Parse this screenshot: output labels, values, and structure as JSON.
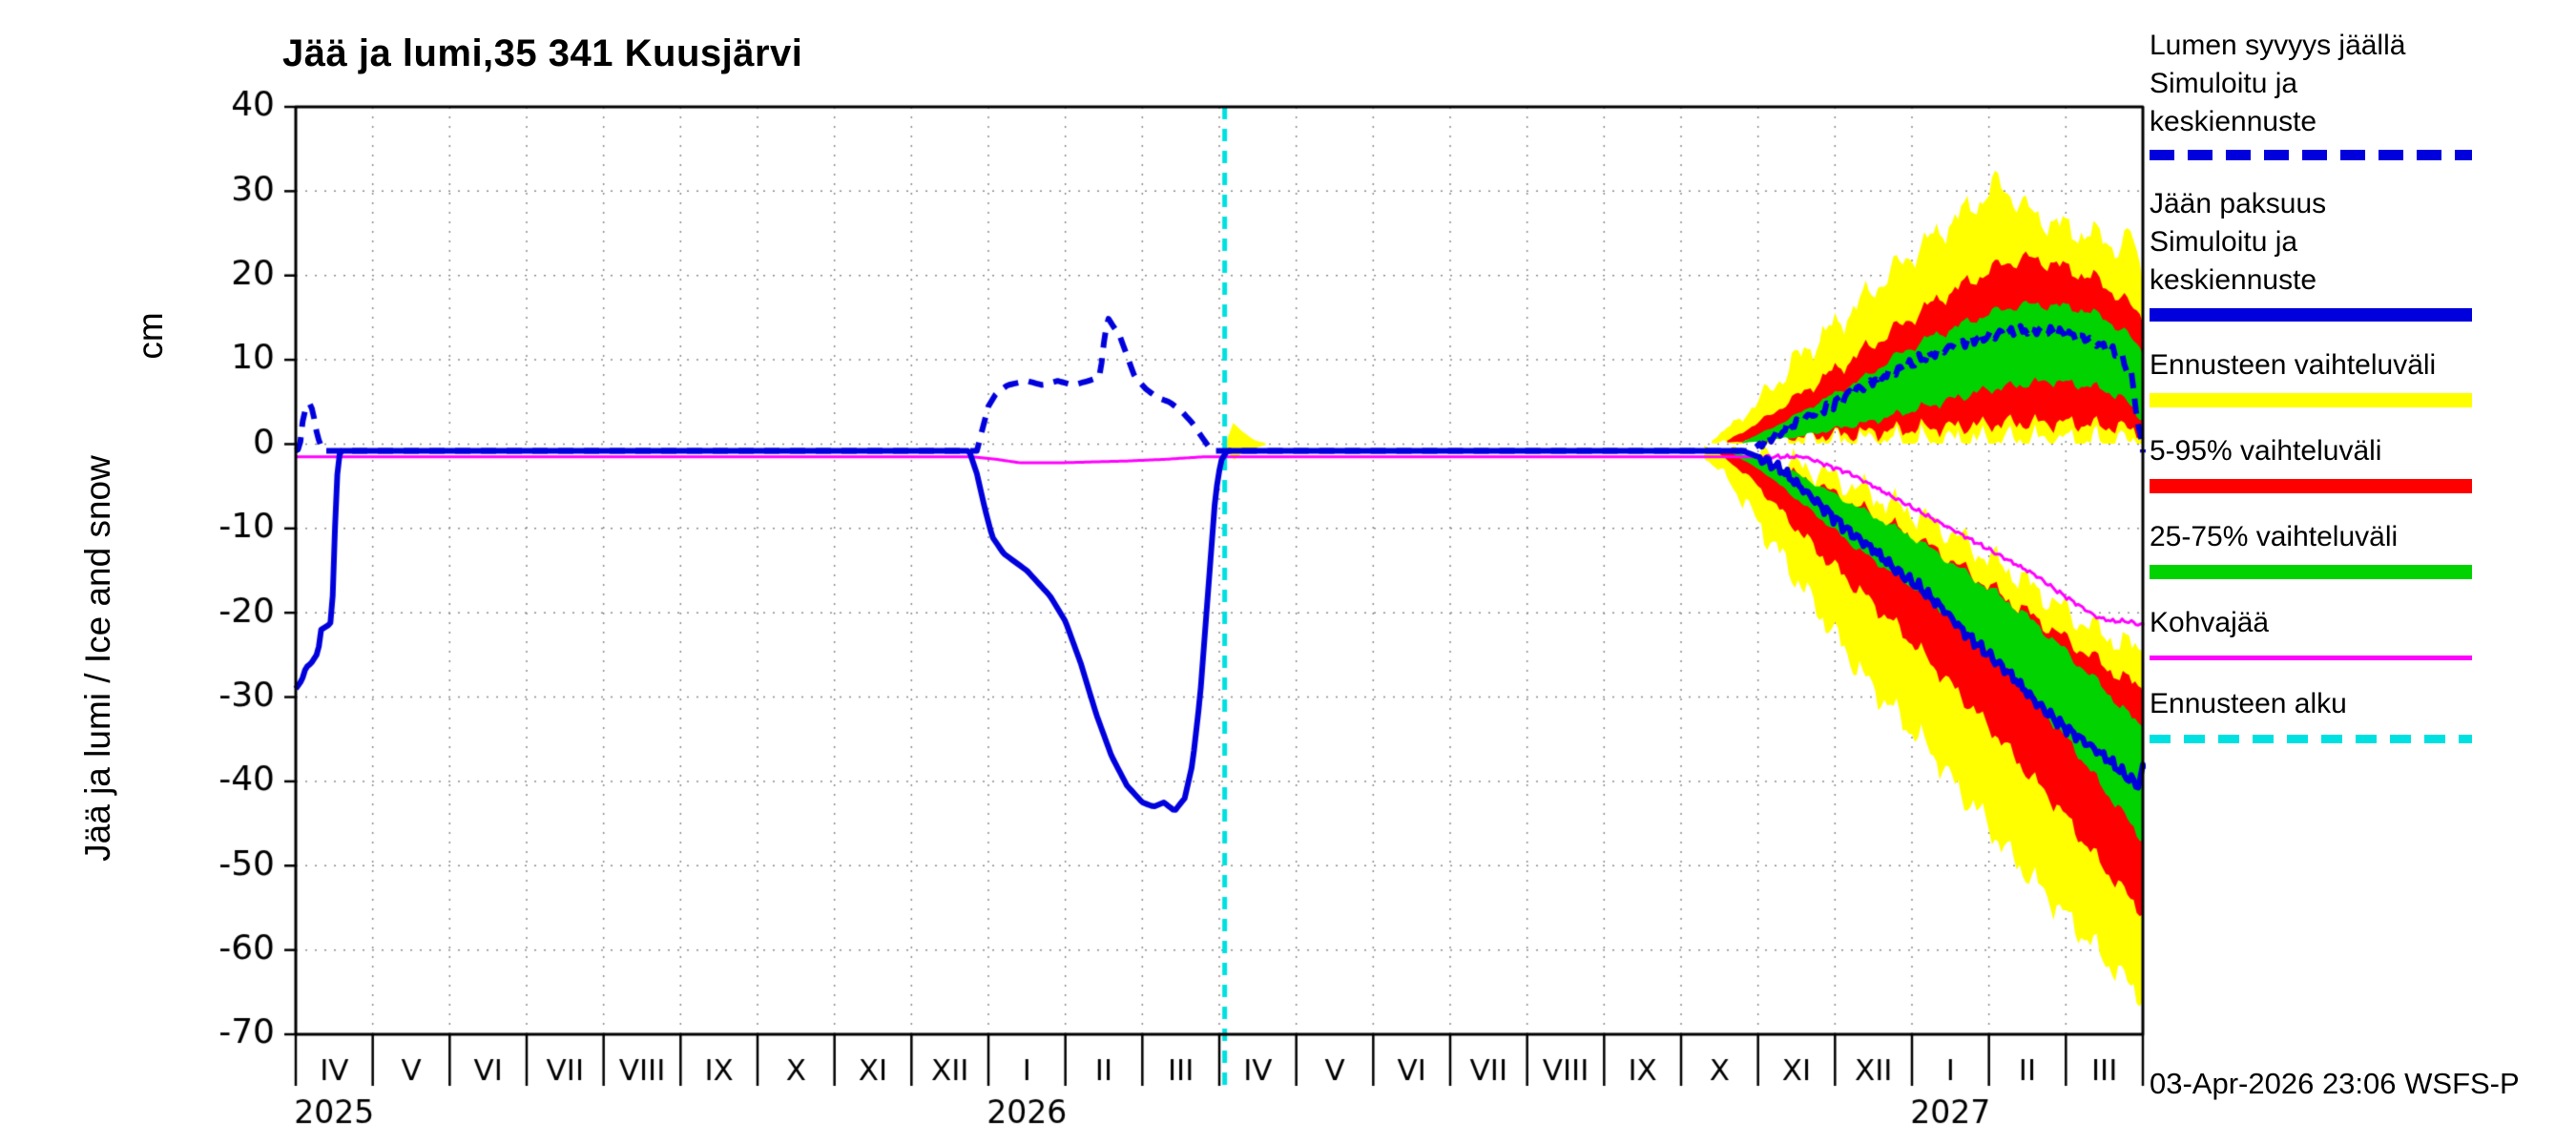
{
  "title": "Jää ja lumi,35 341 Kuusjärvi",
  "y_axis": {
    "label": "Jää ja lumi / Ice and snow",
    "unit": "cm"
  },
  "timestamp": "03-Apr-2026 23:06 WSFS-P",
  "colors": {
    "blue": "#0000dd",
    "yellow": "#ffff00",
    "red": "#ff0000",
    "green": "#00d300",
    "magenta": "#ff00ff",
    "cyan": "#00e0e0",
    "grid": "#8a8a8a"
  },
  "legend": [
    {
      "line1": "Lumen syvyys jäällä",
      "line2": "Simuloitu ja keskiennuste",
      "symbol": "blue-dashed-line"
    },
    {
      "line1": "Jään paksuus",
      "line2": "Simuloitu ja keskiennuste",
      "symbol": "blue-solid-line"
    },
    {
      "line1": "Ennusteen vaihteluväli",
      "symbol": "yellow-band"
    },
    {
      "line1": "5-95% vaihteluväli",
      "symbol": "red-band"
    },
    {
      "line1": "25-75% vaihteluväli",
      "symbol": "green-band"
    },
    {
      "line1": "Kohvajää",
      "symbol": "magenta-line"
    },
    {
      "line1": "Ennusteen alku",
      "symbol": "cyan-dashed-line"
    }
  ],
  "chart_data": {
    "type": "line",
    "title": "Jää ja lumi,35 341 Kuusjärvi",
    "xlabel": "",
    "ylabel": "Jää ja lumi / Ice and snow (cm)",
    "xlim": [
      0,
      24
    ],
    "ylim": [
      -70,
      40
    ],
    "yticks": [
      40,
      30,
      20,
      10,
      0,
      -10,
      -20,
      -30,
      -40,
      -50,
      -60,
      -70
    ],
    "grid": true,
    "legend_position": "right",
    "x_unit": "months, IV/2025 - III/2027",
    "x_axis_months": [
      "IV",
      "V",
      "VI",
      "VII",
      "VIII",
      "IX",
      "X",
      "XI",
      "XII",
      "I",
      "II",
      "III",
      "IV",
      "V",
      "VI",
      "VII",
      "VIII",
      "IX",
      "X",
      "XI",
      "XII",
      "I",
      "II",
      "III"
    ],
    "year_labels": [
      {
        "text": "2025",
        "x": 0.5
      },
      {
        "text": "2026",
        "x": 9.5
      },
      {
        "text": "2027",
        "x": 21.5
      }
    ],
    "forecast_start_x": 12.07,
    "series": [
      {
        "name": "kohvajaa",
        "label": "Kohvajää",
        "color": "#ff00ff",
        "style": "solid",
        "width": 3,
        "wiggle": 0.3,
        "points": [
          [
            0,
            -1.5
          ],
          [
            8.8,
            -1.5
          ],
          [
            9.1,
            -1.8
          ],
          [
            9.4,
            -2.2
          ],
          [
            10.0,
            -2.2
          ],
          [
            10.8,
            -2
          ],
          [
            11.3,
            -1.8
          ],
          [
            11.8,
            -1.5
          ],
          [
            19.6,
            -1.5
          ],
          [
            19.9,
            -2.5
          ],
          [
            20.2,
            -3.5
          ],
          [
            20.5,
            -5
          ],
          [
            20.8,
            -6.5
          ],
          [
            21.1,
            -8
          ],
          [
            21.4,
            -9.5
          ],
          [
            21.7,
            -11
          ],
          [
            22.0,
            -12.5
          ],
          [
            22.3,
            -14
          ],
          [
            22.6,
            -15.5
          ],
          [
            22.9,
            -17.5
          ],
          [
            23.15,
            -19
          ],
          [
            23.4,
            -20.5
          ],
          [
            23.6,
            -21
          ],
          [
            23.8,
            -21
          ],
          [
            24,
            -21.5
          ]
        ]
      },
      {
        "name": "ice-thickness-simulated-median",
        "label": "Jään paksuus - Simuloitu ja keskiennuste",
        "color": "#0000dd",
        "style": "solid",
        "width": 6,
        "wiggle": 0.8,
        "points": [
          [
            0,
            -29
          ],
          [
            0.08,
            -28
          ],
          [
            0.13,
            -26.5
          ],
          [
            0.2,
            -26
          ],
          [
            0.27,
            -25
          ],
          [
            0.3,
            -24
          ],
          [
            0.33,
            -22
          ],
          [
            0.42,
            -21.5
          ],
          [
            0.47,
            -21
          ],
          [
            0.5,
            -12
          ],
          [
            0.55,
            -1.5
          ],
          [
            0.6,
            -0.8
          ],
          [
            8.75,
            -0.8
          ],
          [
            8.85,
            -3.5
          ],
          [
            8.95,
            -7.5
          ],
          [
            9.05,
            -11
          ],
          [
            9.2,
            -13
          ],
          [
            9.5,
            -15
          ],
          [
            9.8,
            -18
          ],
          [
            10.0,
            -21
          ],
          [
            10.2,
            -26
          ],
          [
            10.4,
            -32
          ],
          [
            10.6,
            -37
          ],
          [
            10.8,
            -40.5
          ],
          [
            11.0,
            -42.5
          ],
          [
            11.15,
            -43
          ],
          [
            11.28,
            -42.5
          ],
          [
            11.42,
            -43.5
          ],
          [
            11.55,
            -42
          ],
          [
            11.65,
            -38
          ],
          [
            11.75,
            -30
          ],
          [
            11.85,
            -18
          ],
          [
            11.95,
            -6
          ],
          [
            12.02,
            -2
          ],
          [
            12.1,
            -0.8
          ],
          [
            18.8,
            -0.8
          ],
          [
            19.0,
            -1.5
          ],
          [
            19.3,
            -3
          ],
          [
            19.6,
            -5.5
          ],
          [
            19.9,
            -8
          ],
          [
            20.2,
            -10.5
          ],
          [
            20.5,
            -12.5
          ],
          [
            20.8,
            -15
          ],
          [
            21.1,
            -17
          ],
          [
            21.4,
            -19.5
          ],
          [
            21.7,
            -22.5
          ],
          [
            22.0,
            -25
          ],
          [
            22.3,
            -27.5
          ],
          [
            22.6,
            -30.5
          ],
          [
            22.9,
            -33
          ],
          [
            23.2,
            -35
          ],
          [
            23.5,
            -37
          ],
          [
            23.8,
            -39.5
          ],
          [
            23.95,
            -40.5
          ],
          [
            24,
            -38.5
          ]
        ]
      },
      {
        "name": "snow-depth-simulated-median",
        "label": "Lumen syvyys jäällä - Simuloitu ja keskiennuste",
        "color": "#0000dd",
        "style": "dashed",
        "width": 6,
        "wiggle": 0.8,
        "points": [
          [
            0,
            -0.8
          ],
          [
            0.05,
            -0.5
          ],
          [
            0.1,
            3.5
          ],
          [
            0.17,
            5
          ],
          [
            0.22,
            4
          ],
          [
            0.28,
            1
          ],
          [
            0.35,
            -0.8
          ],
          [
            8.85,
            -0.8
          ],
          [
            8.9,
            1
          ],
          [
            9.0,
            4.5
          ],
          [
            9.1,
            6
          ],
          [
            9.25,
            7
          ],
          [
            9.5,
            7.5
          ],
          [
            9.7,
            7
          ],
          [
            9.9,
            7.5
          ],
          [
            10.1,
            7
          ],
          [
            10.3,
            7.5
          ],
          [
            10.45,
            8
          ],
          [
            10.5,
            12
          ],
          [
            10.55,
            15
          ],
          [
            10.62,
            14
          ],
          [
            10.7,
            13
          ],
          [
            10.78,
            11
          ],
          [
            10.9,
            8
          ],
          [
            11.05,
            6.5
          ],
          [
            11.2,
            5.5
          ],
          [
            11.35,
            5
          ],
          [
            11.5,
            4
          ],
          [
            11.65,
            2.5
          ],
          [
            11.8,
            0.5
          ],
          [
            11.9,
            -0.8
          ],
          [
            18.9,
            -0.8
          ],
          [
            19.1,
            0.5
          ],
          [
            19.4,
            2
          ],
          [
            19.7,
            3.5
          ],
          [
            20.0,
            5
          ],
          [
            20.3,
            6.5
          ],
          [
            20.6,
            8
          ],
          [
            20.9,
            9
          ],
          [
            21.2,
            10.5
          ],
          [
            21.5,
            11.5
          ],
          [
            21.8,
            12.5
          ],
          [
            22.1,
            13
          ],
          [
            22.4,
            13.5
          ],
          [
            22.7,
            13.5
          ],
          [
            23.0,
            13
          ],
          [
            23.3,
            12.5
          ],
          [
            23.5,
            11.5
          ],
          [
            23.7,
            10.5
          ],
          [
            23.85,
            8
          ],
          [
            23.95,
            2
          ],
          [
            24,
            -1
          ]
        ]
      }
    ],
    "bands": [
      {
        "name": "forecast-start-spread",
        "color": "#ffff00",
        "jitter": 0,
        "x": [
          12.1,
          12.18,
          12.3,
          12.45,
          12.6
        ],
        "upper": [
          0.5,
          2.5,
          1.5,
          0.5,
          0.1
        ],
        "lower": [
          -0.5,
          -2,
          -1,
          -0.5,
          -0.1
        ]
      },
      {
        "name": "snow-forecast-range",
        "color": "#ffff00",
        "jitter": 2.2,
        "cmin": 0.05,
        "x": [
          18.4,
          18.7,
          19.0,
          19.3,
          19.6,
          20.0,
          20.4,
          20.8,
          21.2,
          21.6,
          21.9,
          22.1,
          22.3,
          22.6,
          22.9,
          23.2,
          23.5,
          23.7,
          23.85,
          24
        ],
        "upper": [
          0.5,
          2.5,
          5,
          8,
          11,
          14,
          17.5,
          21,
          24,
          27,
          29,
          31,
          29.5,
          27,
          26,
          25,
          24.5,
          23,
          25,
          20
        ],
        "lower": [
          0.1,
          0.2,
          0.2,
          0.3,
          0.3,
          0.3,
          0.4,
          0.4,
          0.4,
          0.5,
          0.5,
          0.5,
          0.5,
          0.5,
          0.5,
          0.4,
          0.4,
          0.3,
          0.3,
          0.2
        ]
      },
      {
        "name": "ice-forecast-range",
        "color": "#ffff00",
        "jitter": 2.2,
        "cmax": -0.05,
        "x": [
          18.3,
          18.6,
          18.9,
          19.2,
          19.5,
          19.8,
          20.1,
          20.4,
          20.7,
          21.0,
          21.3,
          21.6,
          21.9,
          22.2,
          22.5,
          22.8,
          23.1,
          23.4,
          23.7,
          24
        ],
        "upper": [
          -0.3,
          -0.8,
          -1.2,
          -1.8,
          -2.5,
          -3.2,
          -4.5,
          -5.5,
          -7,
          -8,
          -9.5,
          -11,
          -13,
          -14.5,
          -16.5,
          -18.5,
          -20.5,
          -22,
          -23.5,
          -24.5
        ],
        "lower": [
          -1.5,
          -4,
          -8,
          -12,
          -16,
          -20,
          -24,
          -28,
          -31,
          -34,
          -37,
          -41,
          -44,
          -48,
          -51,
          -54,
          -57,
          -60,
          -63,
          -65.5
        ]
      },
      {
        "name": "snow-5-95",
        "color": "#ff0000",
        "jitter": 1.3,
        "cmin": 0.05,
        "x": [
          18.6,
          19.0,
          19.4,
          19.8,
          20.2,
          20.6,
          21.0,
          21.4,
          21.8,
          22.2,
          22.5,
          22.8,
          23.1,
          23.4,
          23.7,
          24
        ],
        "upper": [
          0.4,
          2.5,
          5,
          7.5,
          10,
          12.5,
          15,
          17.5,
          19.5,
          21.5,
          22,
          21.5,
          20.5,
          19.5,
          17.5,
          15
        ],
        "lower": [
          0.2,
          0.5,
          0.8,
          1,
          1.2,
          1.5,
          1.8,
          2,
          2.2,
          2.5,
          2.5,
          2.5,
          2.5,
          2.2,
          2,
          1.5
        ]
      },
      {
        "name": "ice-5-95",
        "color": "#ff0000",
        "jitter": 1.3,
        "cmax": -0.05,
        "x": [
          18.5,
          18.9,
          19.3,
          19.7,
          20.1,
          20.5,
          20.9,
          21.3,
          21.7,
          22.1,
          22.5,
          22.9,
          23.3,
          23.7,
          24
        ],
        "upper": [
          -0.8,
          -1.8,
          -3,
          -4.5,
          -6.5,
          -8.5,
          -10.5,
          -12.5,
          -15,
          -17.5,
          -20,
          -22.5,
          -25,
          -27.5,
          -29
        ],
        "lower": [
          -1.2,
          -4,
          -8,
          -12,
          -15.5,
          -19,
          -22.5,
          -26.5,
          -30.5,
          -34.5,
          -39,
          -43,
          -48,
          -52.5,
          -55.5
        ]
      },
      {
        "name": "snow-25-75",
        "color": "#00d300",
        "jitter": 0.8,
        "cmin": 0.05,
        "x": [
          18.8,
          19.2,
          19.6,
          20.0,
          20.4,
          20.8,
          21.2,
          21.6,
          22.0,
          22.4,
          22.8,
          23.2,
          23.5,
          23.8,
          24
        ],
        "upper": [
          0.3,
          2,
          4,
          6,
          8,
          10.5,
          12.5,
          14,
          15.5,
          16.5,
          16.5,
          16,
          15,
          13,
          11
        ],
        "lower": [
          0.1,
          0.5,
          1,
          1.8,
          2.5,
          3.5,
          4.5,
          5.5,
          6.5,
          7,
          7.5,
          7,
          6.5,
          5,
          3
        ]
      },
      {
        "name": "ice-25-75",
        "color": "#00d300",
        "jitter": 0.8,
        "cmax": -0.05,
        "x": [
          18.7,
          19.1,
          19.5,
          19.9,
          20.3,
          20.7,
          21.1,
          21.5,
          21.9,
          22.3,
          22.7,
          23.1,
          23.5,
          23.8,
          24
        ],
        "upper": [
          -0.9,
          -2,
          -3.5,
          -5.5,
          -7.5,
          -9.5,
          -11.5,
          -14,
          -16.5,
          -19,
          -22,
          -25.5,
          -29,
          -32,
          -33.5
        ],
        "lower": [
          -1.3,
          -3.5,
          -6.5,
          -9.5,
          -12.5,
          -15,
          -17.5,
          -20.5,
          -24,
          -27.5,
          -31.5,
          -36,
          -41,
          -44.5,
          -47
        ]
      }
    ]
  }
}
